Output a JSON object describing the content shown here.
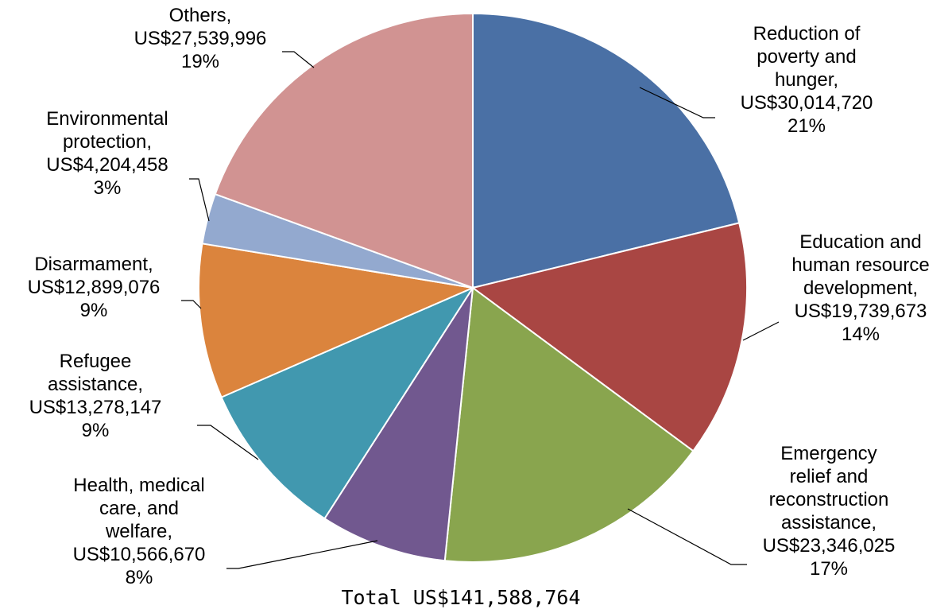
{
  "chart_data": {
    "type": "pie",
    "total_label": "Total US$141,588,764",
    "slices": [
      {
        "category": "Reduction of poverty and hunger,",
        "amount": "US$30,014,720",
        "percent_label": "21%",
        "value": 30014720,
        "color": "#4A70A5"
      },
      {
        "category": "Education and human resource development,",
        "amount": "US$19,739,673",
        "percent_label": "14%",
        "value": 19739673,
        "color": "#A94643"
      },
      {
        "category": "Emergency relief and reconstruction assistance,",
        "amount": "US$23,346,025",
        "percent_label": "17%",
        "value": 23346025,
        "color": "#89A54E"
      },
      {
        "category": "Health, medical care, and welfare,",
        "amount": "US$10,566,670",
        "percent_label": "8%",
        "value": 10566670,
        "color": "#71588F"
      },
      {
        "category": "Refugee assistance,",
        "amount": "US$13,278,147",
        "percent_label": "9%",
        "value": 13278147,
        "color": "#4198AF"
      },
      {
        "category": "Disarmament,",
        "amount": "US$12,899,076",
        "percent_label": "9%",
        "value": 12899076,
        "color": "#DB843D"
      },
      {
        "category": "Environmental protection,",
        "amount": "US$4,204,458",
        "percent_label": "3%",
        "value": 4204458,
        "color": "#93A9CF"
      },
      {
        "category": "Others,",
        "amount": "US$27,539,996",
        "percent_label": "19%",
        "value": 27539996,
        "color": "#D19392"
      }
    ]
  }
}
